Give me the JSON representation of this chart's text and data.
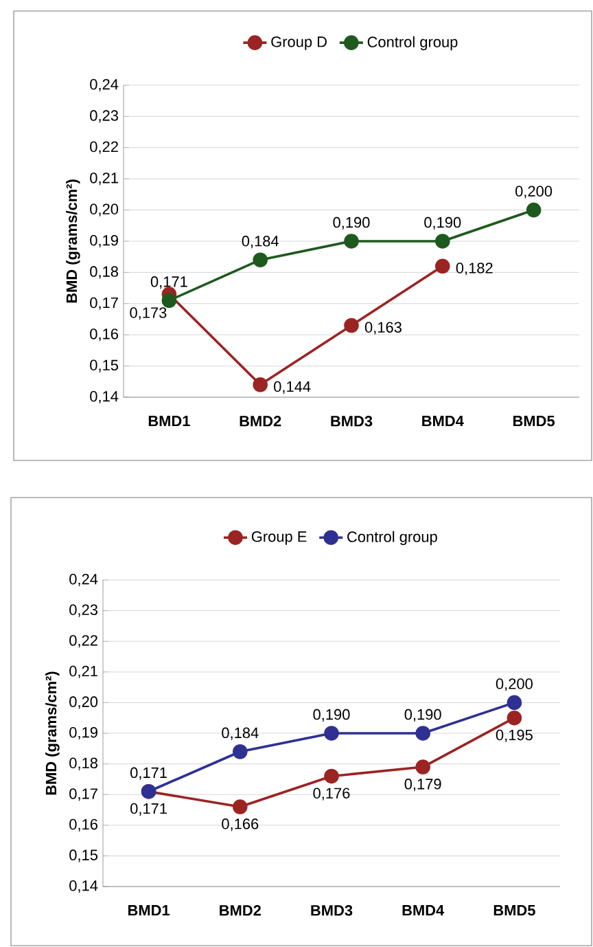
{
  "chart_data": [
    {
      "type": "line",
      "categories": [
        "BMD1",
        "BMD2",
        "BMD3",
        "BMD4",
        "BMD5"
      ],
      "ylabel": "BMD (grams/cm²)",
      "ylim": [
        0.14,
        0.24
      ],
      "yticks": [
        {
          "value": 0.14,
          "label": "0,14"
        },
        {
          "value": 0.15,
          "label": "0,15"
        },
        {
          "value": 0.16,
          "label": "0,16"
        },
        {
          "value": 0.17,
          "label": "0,17"
        },
        {
          "value": 0.18,
          "label": "0,18"
        },
        {
          "value": 0.19,
          "label": "0,19"
        },
        {
          "value": 0.2,
          "label": "0,20"
        },
        {
          "value": 0.21,
          "label": "0,21"
        },
        {
          "value": 0.22,
          "label": "0,22"
        },
        {
          "value": 0.23,
          "label": "0,23"
        },
        {
          "value": 0.24,
          "label": "0,24"
        }
      ],
      "grid": "y",
      "legend": "top",
      "marker": "circle",
      "series": [
        {
          "name": "Group D",
          "color": "#9b2423",
          "values": [
            0.173,
            0.144,
            0.163,
            0.182,
            null
          ],
          "value_labels": [
            "0,173",
            "0,144",
            "0,163",
            "0,182",
            null
          ]
        },
        {
          "name": "Control group",
          "color": "#1e5a1e",
          "values": [
            0.171,
            0.184,
            0.19,
            0.19,
            0.2
          ],
          "value_labels": [
            "0,171",
            "0,184",
            "0,190",
            "0,190",
            "0,200"
          ]
        }
      ]
    },
    {
      "type": "line",
      "categories": [
        "BMD1",
        "BMD2",
        "BMD3",
        "BMD4",
        "BMD5"
      ],
      "ylabel": "BMD (grams/cm²)",
      "ylim": [
        0.14,
        0.24
      ],
      "yticks": [
        {
          "value": 0.14,
          "label": "0,14"
        },
        {
          "value": 0.15,
          "label": "0,15"
        },
        {
          "value": 0.16,
          "label": "0,16"
        },
        {
          "value": 0.17,
          "label": "0,17"
        },
        {
          "value": 0.18,
          "label": "0,18"
        },
        {
          "value": 0.19,
          "label": "0,19"
        },
        {
          "value": 0.2,
          "label": "0,20"
        },
        {
          "value": 0.21,
          "label": "0,21"
        },
        {
          "value": 0.22,
          "label": "0,22"
        },
        {
          "value": 0.23,
          "label": "0,23"
        },
        {
          "value": 0.24,
          "label": "0,24"
        }
      ],
      "grid": "y",
      "legend": "top",
      "marker": "circle",
      "series": [
        {
          "name": "Group E",
          "color": "#9b2423",
          "values": [
            0.171,
            0.166,
            0.176,
            0.179,
            0.195
          ],
          "value_labels": [
            "0,171",
            "0,166",
            "0,176",
            "0,179",
            "0,195"
          ]
        },
        {
          "name": "Control group",
          "color": "#2e3192",
          "values": [
            0.171,
            0.184,
            0.19,
            0.19,
            0.2
          ],
          "value_labels": [
            "0,171",
            "0,184",
            "0,190",
            "0,190",
            "0,200"
          ]
        }
      ]
    }
  ]
}
